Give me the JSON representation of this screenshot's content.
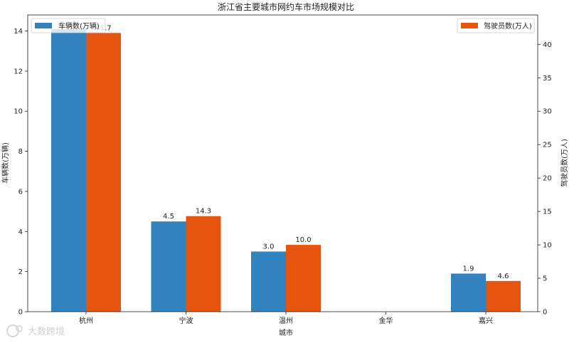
{
  "chart_data": {
    "type": "bar",
    "title": "浙江省主要城市网约车市场规模对比",
    "xlabel": "城市",
    "ylabel_left": "车辆数(万辆)",
    "ylabel_right": "驾驶员数(万人)",
    "categories": [
      "杭州",
      "宁波",
      "温州",
      "金华",
      "嘉兴"
    ],
    "ylim_left": [
      0,
      14.8
    ],
    "ylim_right": [
      0,
      44.4
    ],
    "yticks_left": [
      0,
      2,
      4,
      6,
      8,
      10,
      12,
      14
    ],
    "yticks_right": [
      0,
      5,
      10,
      15,
      20,
      25,
      30,
      35,
      40
    ],
    "grid": false,
    "series": [
      {
        "name": "车辆数(万辆)",
        "axis": "left",
        "color": "#3182bd",
        "values": [
          14.1,
          4.5,
          3.0,
          null,
          1.9
        ],
        "labels": [
          "14.1",
          "4.5",
          "3.0",
          "",
          "1.9"
        ]
      },
      {
        "name": "驾驶员数(万人)",
        "axis": "right",
        "color": "#e6550d",
        "values": [
          41.7,
          14.3,
          10.0,
          null,
          4.6
        ],
        "labels": [
          "41.7",
          "14.3",
          "10.0",
          "",
          "4.6"
        ]
      }
    ],
    "legend_left_placement": "upper-left",
    "legend_right_placement": "upper-right"
  },
  "watermark": {
    "text": "大数跨境",
    "icon": "watermark-logo-icon"
  }
}
